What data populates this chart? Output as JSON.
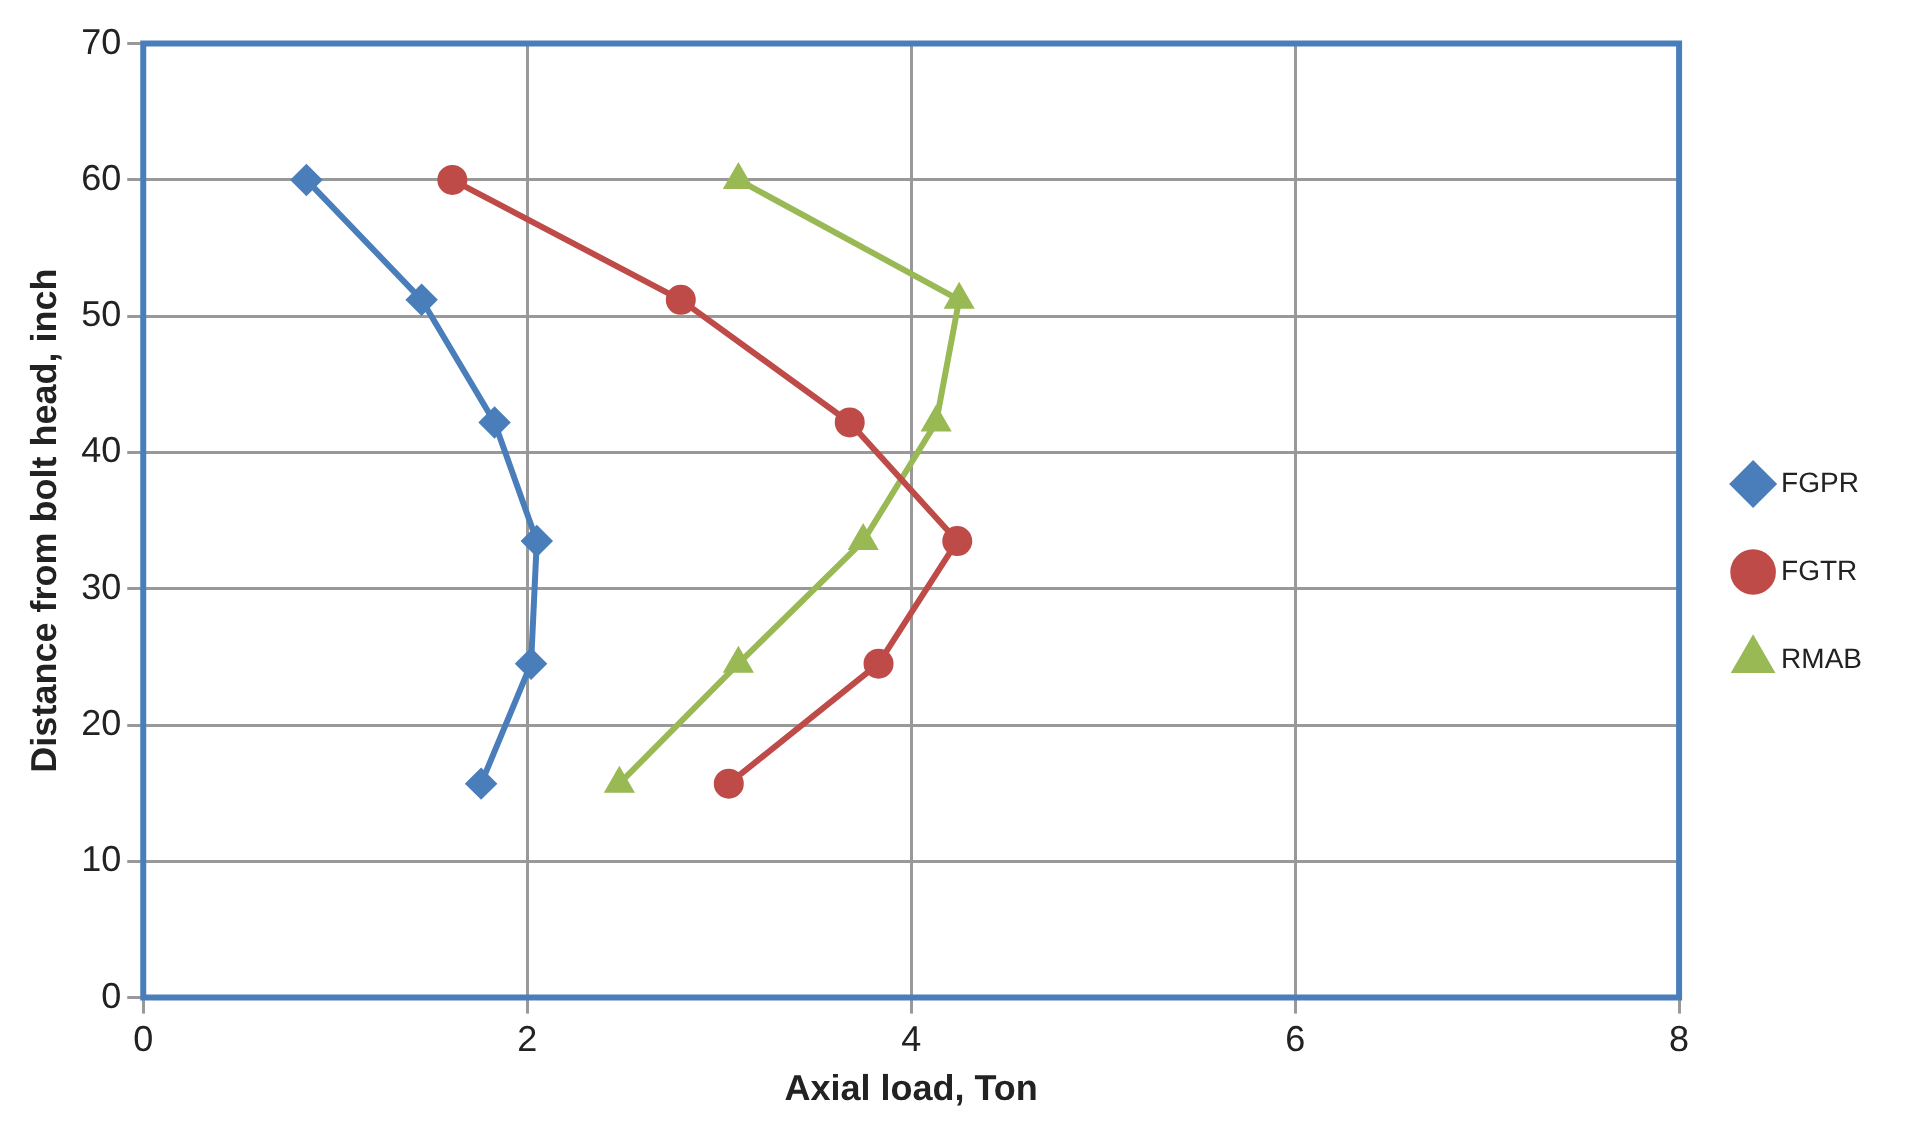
{
  "chart_data": {
    "type": "line",
    "xlabel": "Axial load, Ton",
    "ylabel": "Distance from bolt head, inch",
    "xlim": [
      0,
      8
    ],
    "xticks": [
      0,
      2,
      4,
      6,
      8
    ],
    "ylim": [
      0,
      70
    ],
    "yticks": [
      0,
      10,
      20,
      30,
      40,
      50,
      60,
      70
    ],
    "grid": true,
    "legend": "right",
    "series": [
      {
        "name": "FGPR",
        "color": "#4a7ebb",
        "marker": "diamond",
        "x": [
          0.85,
          1.45,
          1.83,
          2.05,
          2.02,
          1.76
        ],
        "values": [
          60,
          51.2,
          42.2,
          33.5,
          24.5,
          15.7
        ]
      },
      {
        "name": "FGTR",
        "color": "#be4b48",
        "marker": "circle",
        "x": [
          1.61,
          2.8,
          3.68,
          4.24,
          3.83,
          3.05
        ],
        "values": [
          60,
          51.2,
          42.2,
          33.5,
          24.5,
          15.7
        ]
      },
      {
        "name": "RMAB",
        "color": "#98b954",
        "marker": "triangle",
        "x": [
          3.1,
          4.25,
          4.13,
          3.75,
          3.1,
          2.48
        ],
        "values": [
          60,
          51.2,
          42.2,
          33.5,
          24.5,
          15.7
        ]
      }
    ]
  }
}
